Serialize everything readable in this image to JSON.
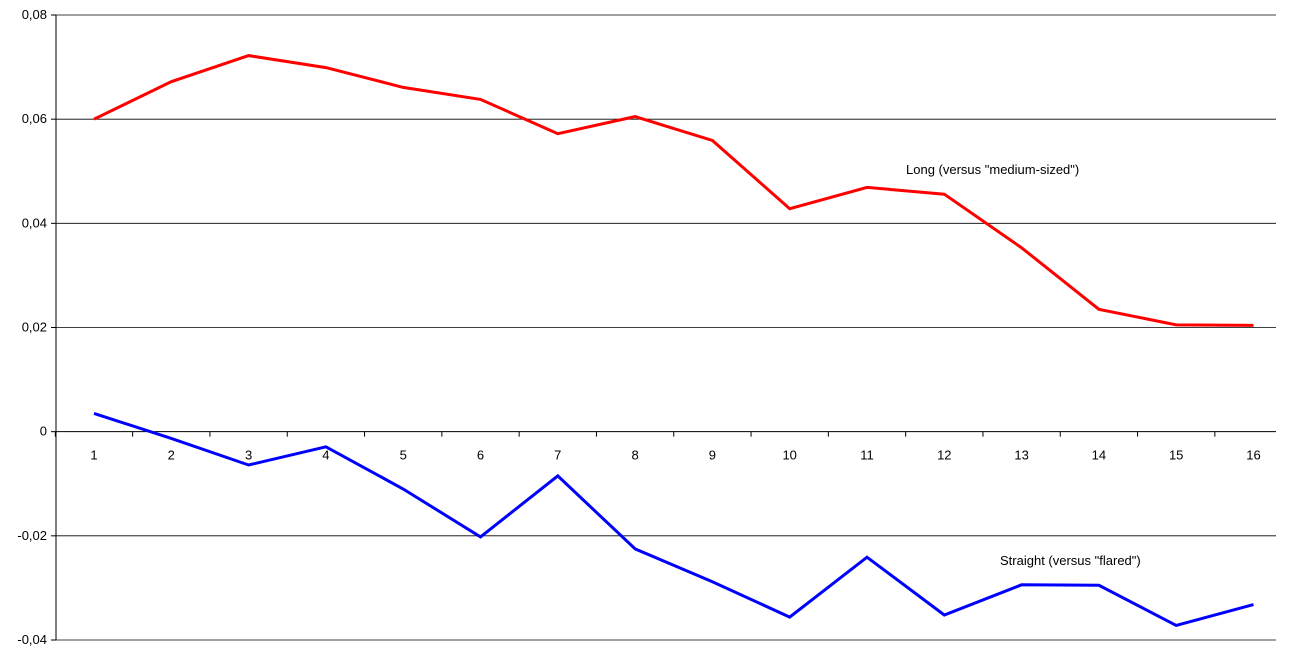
{
  "chart_data": {
    "type": "line",
    "title": "",
    "xlabel": "",
    "ylabel": "",
    "categories": [
      "1",
      "2",
      "3",
      "4",
      "5",
      "6",
      "7",
      "8",
      "9",
      "10",
      "11",
      "12",
      "13",
      "14",
      "15",
      "16"
    ],
    "ylim": [
      -0.04,
      0.08
    ],
    "yticks": [
      -0.04,
      -0.02,
      0,
      0.02,
      0.04,
      0.06,
      0.08
    ],
    "ytick_labels": [
      "-0,04",
      "-0,02",
      "0",
      "0,02",
      "0,04",
      "0,06",
      "0,08"
    ],
    "grid": true,
    "legend": "none",
    "series": [
      {
        "name": "Long (versus \"medium-sized\")",
        "color": "#ff0000",
        "values": [
          0.06,
          0.0672,
          0.0722,
          0.0699,
          0.0661,
          0.0638,
          0.0572,
          0.0605,
          0.0559,
          0.0428,
          0.0469,
          0.0456,
          0.0353,
          0.0235,
          0.0205,
          0.0204
        ]
      },
      {
        "name": "Straight (versus \"flared\")",
        "color": "#0000ff",
        "values": [
          0.0035,
          -0.0013,
          -0.0064,
          -0.0029,
          -0.011,
          -0.0202,
          -0.0085,
          -0.0225,
          -0.0288,
          -0.0356,
          -0.0241,
          -0.0352,
          -0.0294,
          -0.0295,
          -0.0372,
          -0.0332
        ]
      }
    ]
  }
}
